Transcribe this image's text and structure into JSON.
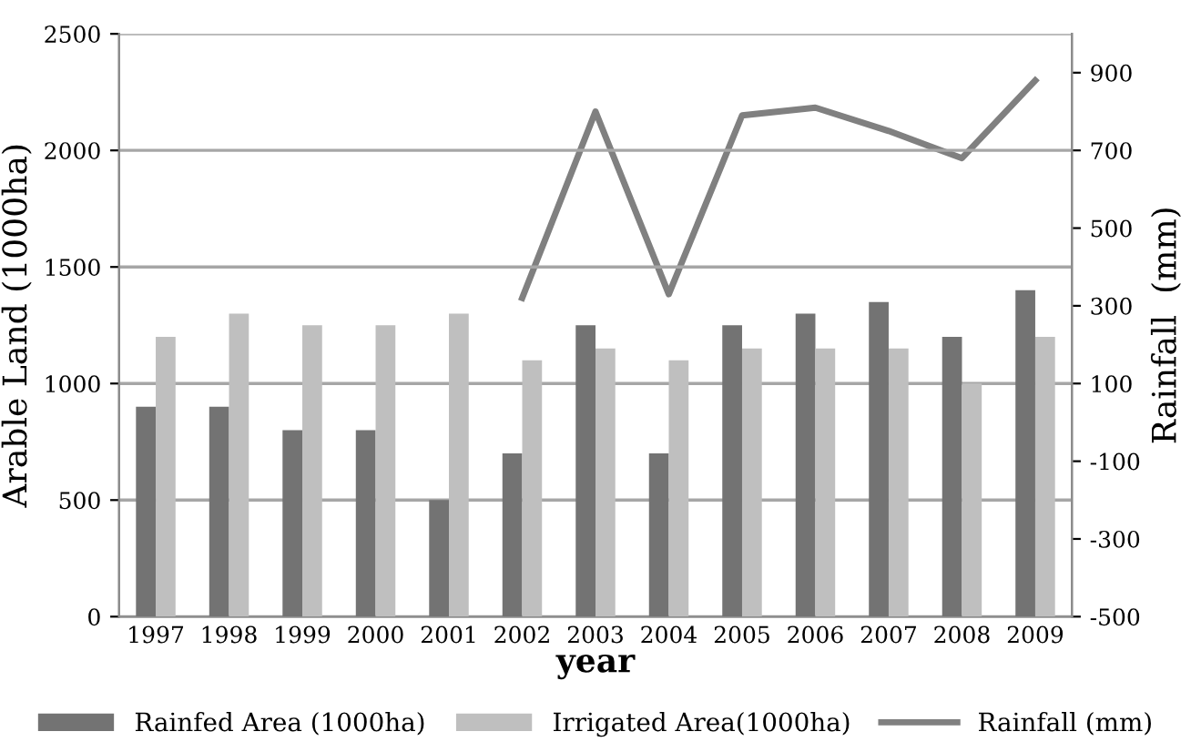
{
  "chart_data": {
    "type": "bar",
    "categories": [
      "1997",
      "1998",
      "1999",
      "2000",
      "2001",
      "2002",
      "2003",
      "2004",
      "2005",
      "2006",
      "2007",
      "2008",
      "2009"
    ],
    "xlabel": "year",
    "ylabel": "Arable Land (1000ha)",
    "y2label": "Rainfall  (mm)",
    "series": [
      {
        "name": "Rainfed Area (1000ha)",
        "color": "#737373",
        "values": [
          900,
          900,
          800,
          800,
          500,
          700,
          1250,
          700,
          1250,
          1300,
          1350,
          1200,
          1400
        ]
      },
      {
        "name": "Irrigated Area(1000ha)",
        "color": "#bfbfbf",
        "values": [
          1200,
          1300,
          1250,
          1250,
          1300,
          1100,
          1150,
          1100,
          1150,
          1150,
          1150,
          1000,
          1200
        ]
      },
      {
        "name": "Rainfall (mm)",
        "color": "#808080",
        "type": "line",
        "axis": "y2",
        "values": [
          null,
          null,
          null,
          null,
          null,
          320,
          800,
          330,
          790,
          810,
          750,
          680,
          880
        ]
      }
    ],
    "ylim": [
      0,
      2500
    ],
    "yticks": [
      0,
      500,
      1000,
      1500,
      2000,
      2500
    ],
    "y2lim": [
      -500,
      1000
    ],
    "y2ticks": [
      -500,
      -300,
      -100,
      100,
      300,
      500,
      700,
      900
    ],
    "grid": "y",
    "legend": "bottom",
    "marker": "none",
    "line_style": "solid"
  }
}
